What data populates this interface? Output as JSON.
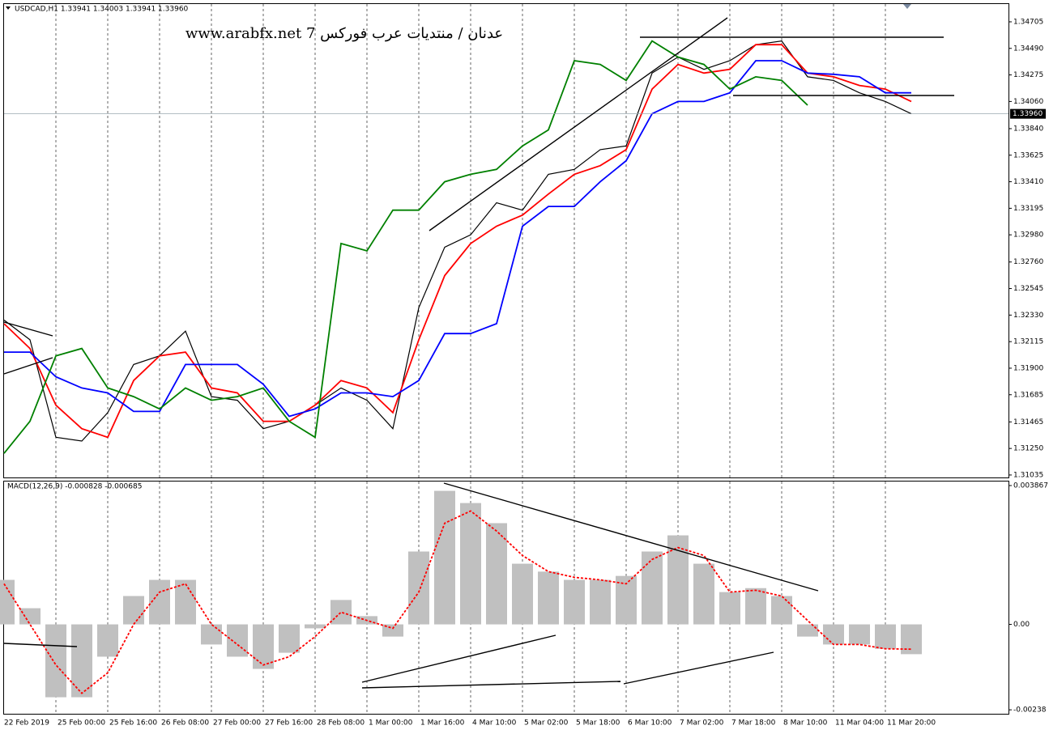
{
  "chart_data": [
    {
      "type": "line",
      "title": "USDCAD,H1  1.33941 1.34003 1.33941 1.33960",
      "annotations": [
        "www.arabfx.net 7 عدنان / منتديات عرب فوركس"
      ],
      "categories": [
        "22 Feb 2019",
        null,
        "25 Feb 00:00",
        null,
        "25 Feb 16:00",
        null,
        "26 Feb 08:00",
        null,
        "27 Feb 00:00",
        null,
        "27 Feb 16:00",
        null,
        "28 Feb 08:00",
        null,
        "1 Mar 00:00",
        null,
        "1 Mar 16:00",
        null,
        "4 Mar 10:00",
        null,
        "5 Mar 02:00",
        null,
        "5 Mar 18:00",
        null,
        "6 Mar 10:00",
        null,
        "7 Mar 02:00",
        null,
        "7 Mar 18:00",
        null,
        "8 Mar 10:00",
        null,
        "11 Mar 04:00",
        null,
        "11 Mar 20:00",
        null
      ],
      "series": [
        {
          "color": "#000000",
          "values": [
            1.3229,
            1.3213,
            1.3134,
            1.3131,
            1.3154,
            1.3193,
            1.32,
            1.322,
            1.3167,
            1.3164,
            1.3141,
            1.3147,
            1.316,
            1.3174,
            1.3164,
            1.3141,
            1.3239,
            1.3288,
            1.3298,
            1.3324,
            1.3318,
            1.3347,
            1.3351,
            1.3367,
            1.337,
            1.3429,
            1.3442,
            1.3432,
            1.3439,
            1.3452,
            1.3455,
            1.3426,
            1.3423,
            1.3413,
            1.3406,
            1.3396
          ]
        },
        {
          "color": "#ff0000",
          "values": [
            1.3226,
            1.3206,
            1.316,
            1.3141,
            1.3134,
            1.318,
            1.32,
            1.3203,
            1.3174,
            1.317,
            1.3147,
            1.3147,
            1.316,
            1.318,
            1.3174,
            1.3154,
            1.3213,
            1.3265,
            1.3291,
            1.3305,
            1.3314,
            1.3331,
            1.3347,
            1.3354,
            1.3367,
            1.3416,
            1.3436,
            1.3429,
            1.3432,
            1.3452,
            1.3452,
            1.3429,
            1.3426,
            1.3419,
            1.3416,
            1.3406
          ]
        },
        {
          "color": "#0000ff",
          "values": [
            1.3203,
            1.3203,
            1.3183,
            1.3174,
            1.317,
            1.3155,
            1.3155,
            1.3193,
            1.3193,
            1.3193,
            1.3177,
            1.3151,
            1.3157,
            1.317,
            1.317,
            1.3167,
            1.318,
            1.3218,
            1.3218,
            1.3226,
            1.3305,
            1.3321,
            1.3321,
            1.3341,
            1.3358,
            1.3396,
            1.3406,
            1.3406,
            1.3413,
            1.3439,
            1.3439,
            1.3429,
            1.3428,
            1.3426,
            1.3413,
            1.3413
          ]
        },
        {
          "color": "#008000",
          "values": [
            1.3121,
            1.3147,
            1.32,
            1.3206,
            1.3174,
            1.3167,
            1.3157,
            1.3174,
            1.3164,
            1.3167,
            1.3174,
            1.3147,
            1.3134,
            1.3291,
            1.3285,
            1.3318,
            1.3318,
            1.3341,
            1.3347,
            1.3351,
            1.337,
            1.3383,
            1.3439,
            1.3436,
            1.3423,
            1.3455,
            1.3442,
            1.3436,
            1.3416,
            1.3426,
            1.3423,
            1.3403,
            null,
            null,
            null,
            null
          ]
        }
      ],
      "current_price": {
        "value": 1.3396,
        "label": "1.33960"
      },
      "ylim": [
        1.31015,
        1.34849
      ],
      "yticks": [
        1.34705,
        {
          "value": 1.3449,
          "label": "1.34490"
        },
        1.34275,
        {
          "value": 1.3406,
          "label": "1.34060"
        },
        {
          "value": 1.3384,
          "label": "1.33840"
        },
        1.33625,
        {
          "value": 1.3341,
          "label": "1.33410"
        },
        1.33195,
        {
          "value": 1.3298,
          "label": "1.32980"
        },
        {
          "value": 1.3276,
          "label": "1.32760"
        },
        1.32545,
        {
          "value": 1.3233,
          "label": "1.32330"
        },
        1.32115,
        {
          "value": 1.319,
          "label": "1.31900"
        },
        1.31685,
        1.31465,
        {
          "value": 1.3125,
          "label": "1.31250"
        },
        1.31035
      ],
      "grid": true
    },
    {
      "type": "bar",
      "title": "MACD(12,26,9) -0.000828 -0.000685",
      "series": [
        {
          "type": "bar",
          "color": "#c0c0c0",
          "values": [
            0.00124,
            0.00045,
            -0.00203,
            -0.00203,
            -0.0009,
            0.00079,
            0.00124,
            0.00124,
            -0.00056,
            -0.0009,
            -0.00124,
            -0.00079,
            -0.00011,
            0.00068,
            0.00023,
            -0.00034,
            0.00203,
            0.00372,
            0.00338,
            0.00282,
            0.00169,
            0.00147,
            0.00124,
            0.00124,
            0.00135,
            0.00203,
            0.00248,
            0.00169,
            0.0009,
            0.00101,
            0.00079,
            -0.00034,
            -0.00056,
            -0.00056,
            -0.00068,
            -0.00083
          ]
        },
        {
          "type": "line",
          "style": "dashed",
          "color": "#ff0000",
          "values": [
            0.00113,
            0,
            -0.00113,
            -0.00192,
            -0.00135,
            0,
            0.0009,
            0.00113,
            0,
            -0.00056,
            -0.00113,
            -0.0009,
            -0.00034,
            0.00034,
            0.00011,
            -0.00011,
            0.0009,
            0.00282,
            0.00316,
            0.0026,
            0.00192,
            0.00147,
            0.00131,
            0.00124,
            0.00113,
            0.00181,
            0.00214,
            0.00192,
            0.0009,
            0.00095,
            0.00079,
            0.00011,
            -0.00056,
            -0.00056,
            -0.00068,
            -0.00069
          ]
        }
      ],
      "ylim": [
        -0.00249,
        0.00398
      ],
      "yticks": [
        0.003867,
        {
          "value": 0,
          "label": "0.00"
        },
        -0.00238
      ]
    }
  ]
}
